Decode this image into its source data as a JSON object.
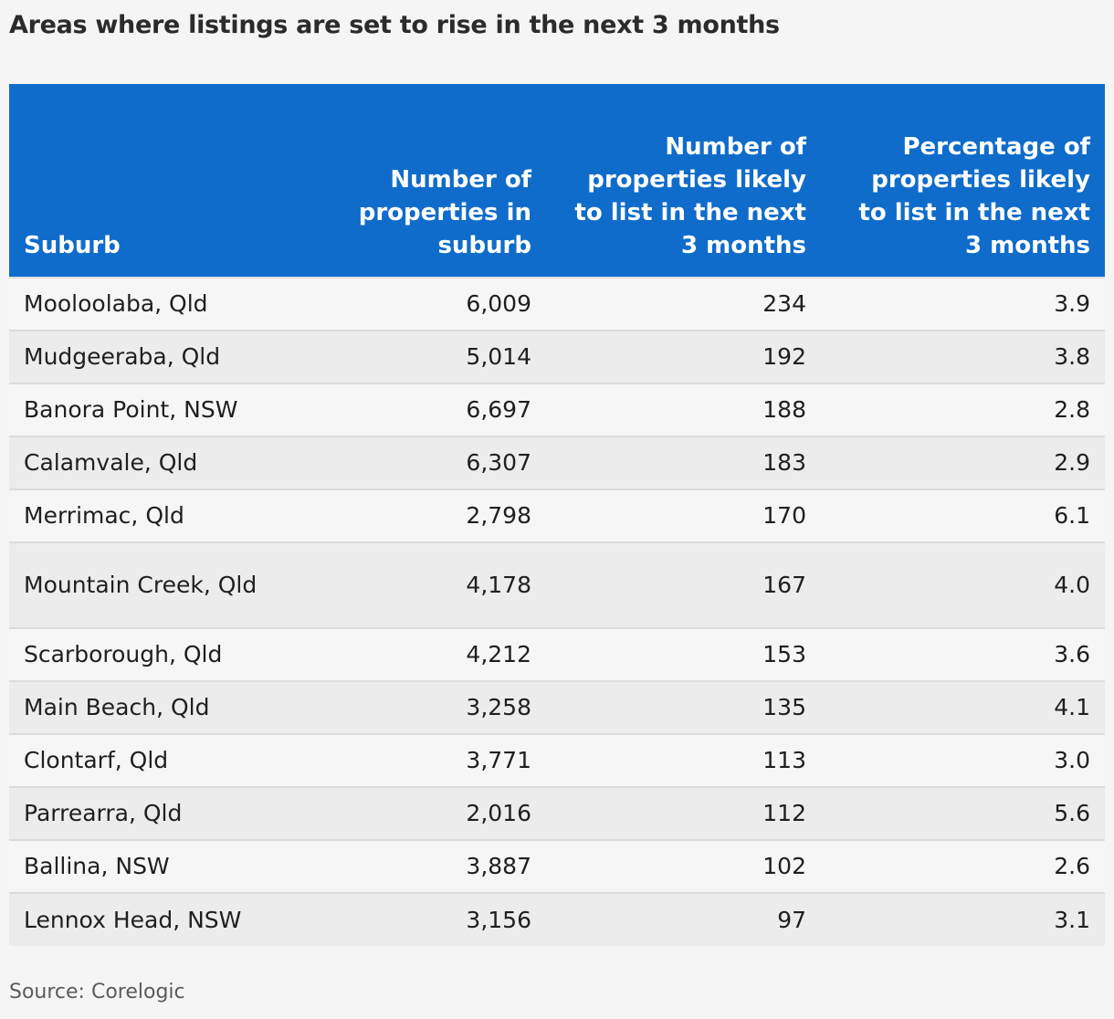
{
  "title": "Areas where listings are set to rise in the next 3 months",
  "columns": [
    "Suburb",
    "Number of properties in suburb",
    "Number of properties likely to list in the next 3 months",
    "Percentage of properties likely to list in the next 3 months"
  ],
  "rows": [
    {
      "suburb": "Mooloolaba, Qld",
      "properties": "6,009",
      "likely": "234",
      "percentage": "3.9"
    },
    {
      "suburb": "Mudgeeraba, Qld",
      "properties": "5,014",
      "likely": "192",
      "percentage": "3.8"
    },
    {
      "suburb": "Banora Point, NSW",
      "properties": "6,697",
      "likely": "188",
      "percentage": "2.8"
    },
    {
      "suburb": "Calamvale, Qld",
      "properties": "6,307",
      "likely": "183",
      "percentage": "2.9"
    },
    {
      "suburb": "Merrimac, Qld",
      "properties": "2,798",
      "likely": "170",
      "percentage": "6.1"
    },
    {
      "suburb": "Mountain Creek, Qld",
      "properties": "4,178",
      "likely": "167",
      "percentage": "4.0"
    },
    {
      "suburb": "Scarborough, Qld",
      "properties": "4,212",
      "likely": "153",
      "percentage": "3.6"
    },
    {
      "suburb": "Main Beach, Qld",
      "properties": "3,258",
      "likely": "135",
      "percentage": "4.1"
    },
    {
      "suburb": "Clontarf, Qld",
      "properties": "3,771",
      "likely": "113",
      "percentage": "3.0"
    },
    {
      "suburb": "Parrearra, Qld",
      "properties": "2,016",
      "likely": "112",
      "percentage": "5.6"
    },
    {
      "suburb": "Ballina, NSW",
      "properties": "3,887",
      "likely": "102",
      "percentage": "2.6"
    },
    {
      "suburb": "Lennox Head, NSW",
      "properties": "3,156",
      "likely": "97",
      "percentage": "3.1"
    }
  ],
  "source": "Source: Corelogic",
  "colors": {
    "header": "#106ccb",
    "row_odd": "#f6f6f6",
    "row_even": "#ececec"
  }
}
